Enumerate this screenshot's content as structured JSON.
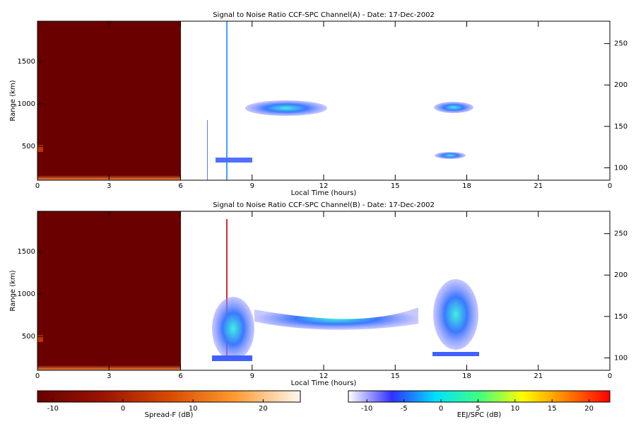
{
  "chart_data": [
    {
      "type": "heatmap",
      "title": "Signal to Noise Ratio CCF-SPC Channel(A) - Date: 17-Dec-2002",
      "xlabel": "Local Time (hours)",
      "ylabel": "Range (km)",
      "xlim": [
        0,
        24
      ],
      "xticks": [
        0,
        3,
        6,
        9,
        12,
        15,
        18,
        21,
        {
          "value": 24,
          "label": "0"
        }
      ],
      "ylim": [
        100,
        1975
      ],
      "yticks": [
        500,
        1000,
        1500
      ],
      "y2lim": [
        85,
        277
      ],
      "y2ticks": [
        100,
        150,
        200,
        250
      ]
    },
    {
      "type": "heatmap",
      "title": "Signal to Noise Ratio CCF-SPC Channel(B) - Date: 17-Dec-2002",
      "xlabel": "Local Time (hours)",
      "ylabel": "Range (km)",
      "xlim": [
        0,
        24
      ],
      "xticks": [
        0,
        3,
        6,
        9,
        12,
        15,
        18,
        21,
        {
          "value": 24,
          "label": "0"
        }
      ],
      "ylim": [
        100,
        1975
      ],
      "yticks": [
        500,
        1000,
        1500
      ],
      "y2lim": [
        85,
        277
      ],
      "y2ticks": [
        100,
        150,
        200,
        250
      ]
    },
    {
      "type": "colorbar",
      "label": "Spread-F (dB)",
      "lim": [
        -12.2,
        25.3
      ],
      "ticks": [
        -10,
        0,
        10,
        20
      ],
      "colors": [
        "#6a0000",
        "#9a1400",
        "#d84a00",
        "#ff9a30",
        "#fff8f0"
      ]
    },
    {
      "type": "colorbar",
      "label": "EEJ/SPC (dB)",
      "lim": [
        -12.5,
        22.8
      ],
      "ticks": [
        -10,
        -5,
        0,
        5,
        10,
        15,
        20
      ],
      "colors": [
        "#ffffff",
        "#3030ff",
        "#00e0ff",
        "#40ff80",
        "#ffff00",
        "#ff8000",
        "#ff0000"
      ]
    }
  ]
}
